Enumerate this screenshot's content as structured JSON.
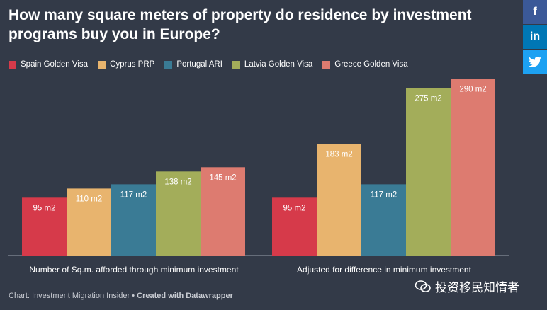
{
  "chart_data": {
    "type": "bar",
    "title": "How many square meters of property do residence by investment programs buy you in Europe?",
    "categories": [
      "Number of Sq.m. afforded through minimum investment",
      "Adjusted for difference in minimum investment"
    ],
    "series": [
      {
        "name": "Spain Golden Visa",
        "color": "#d63a4a",
        "values": [
          95,
          95
        ],
        "labels": [
          "95 m2",
          "95 m2"
        ]
      },
      {
        "name": "Cyprus PRP",
        "color": "#e8b46e",
        "values": [
          110,
          183
        ],
        "labels": [
          "110 m2",
          "183 m2"
        ]
      },
      {
        "name": "Portugal ARI",
        "color": "#3a7b95",
        "values": [
          117,
          117
        ],
        "labels": [
          "117 m2",
          "117 m2"
        ]
      },
      {
        "name": "Latvia Golden Visa",
        "color": "#a3ad5a",
        "values": [
          138,
          275
        ],
        "labels": [
          "138 m2",
          "275 m2"
        ]
      },
      {
        "name": "Greece Golden Visa",
        "color": "#dd7b70",
        "values": [
          145,
          290
        ],
        "labels": [
          "145 m2",
          "290 m2"
        ]
      }
    ],
    "ylim": [
      0,
      300
    ],
    "xlabel": "",
    "ylabel": "",
    "legend": "top-left",
    "grid": false
  },
  "share": {
    "facebook": "f",
    "linkedin": "in",
    "twitter_icon": "twitter-bird-icon"
  },
  "footer": {
    "source": "Chart: Investment Migration Insider • ",
    "created_with": "Created with Datawrapper"
  },
  "watermark": {
    "text": "投资移民知情者",
    "icon": "wechat-icon"
  }
}
